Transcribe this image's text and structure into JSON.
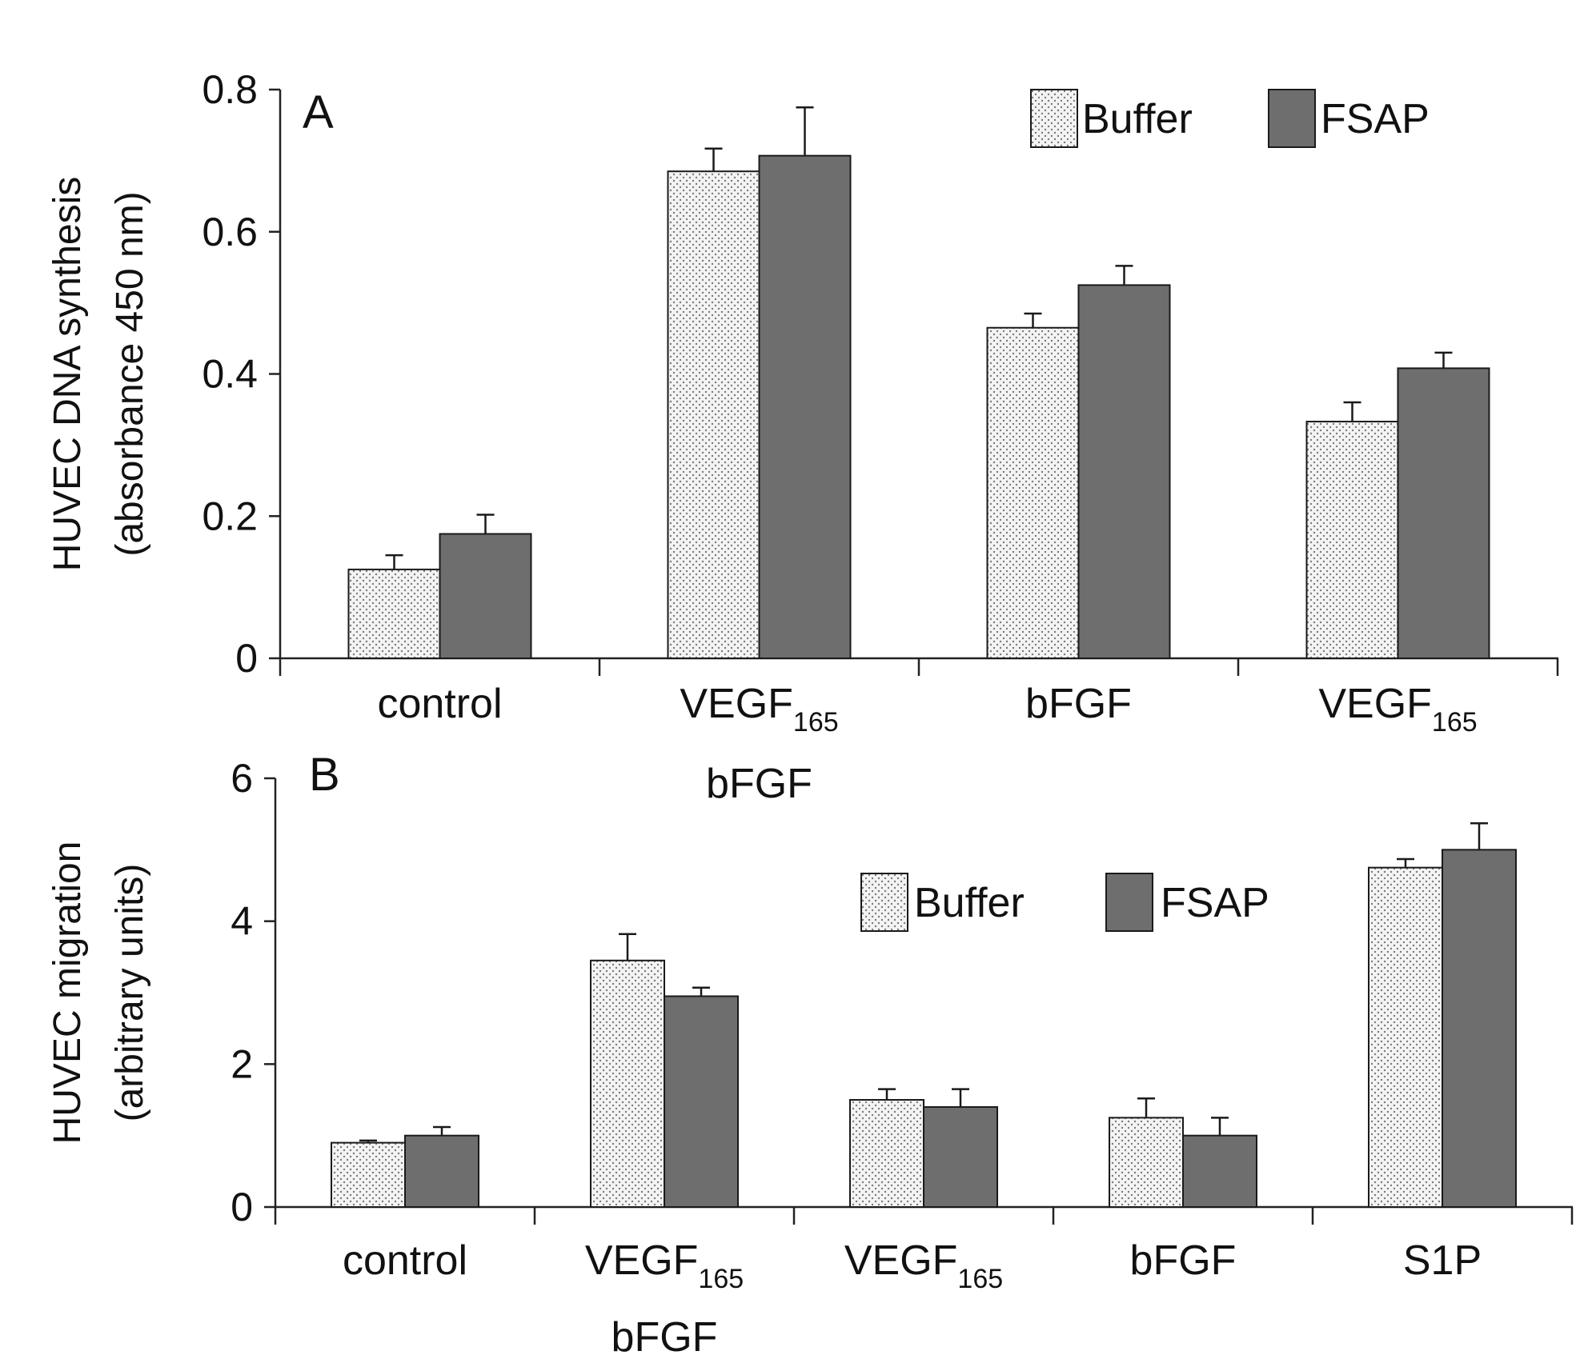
{
  "colors": {
    "buffer_fill": "#f4f4f4",
    "buffer_dots": "#7a7a7a",
    "fsap_fill": "#6e6e6e",
    "bar_edge": "#1a1a1a",
    "axis": "#222222",
    "text": "#111111"
  },
  "legend": [
    {
      "key": "buffer",
      "label": "Buffer"
    },
    {
      "key": "fsap",
      "label": "FSAP"
    }
  ],
  "chart_data": [
    {
      "type": "bar",
      "panel_label": "A",
      "ylabel": "HUVEC DNA synthesis",
      "ylabel2": "(absorbance 450 nm)",
      "ylim": [
        0,
        0.8
      ],
      "yticks": [
        0,
        0.2,
        0.4,
        0.6,
        0.8
      ],
      "ytick_labels": [
        "0",
        "0.2",
        "0.4",
        "0.6",
        "0.8"
      ],
      "legend_position": "top-right",
      "categories": [
        {
          "lines": [
            {
              "main": "control",
              "sub": ""
            }
          ]
        },
        {
          "lines": [
            {
              "main": "VEGF",
              "sub": "165"
            },
            {
              "main": "bFGF",
              "sub": ""
            }
          ]
        },
        {
          "lines": [
            {
              "main": "bFGF",
              "sub": ""
            }
          ]
        },
        {
          "lines": [
            {
              "main": "VEGF",
              "sub": "165"
            }
          ]
        }
      ],
      "series": [
        {
          "name": "Buffer",
          "key": "buffer",
          "values": [
            0.125,
            0.685,
            0.465,
            0.333
          ],
          "errors": [
            0.02,
            0.032,
            0.02,
            0.027
          ]
        },
        {
          "name": "FSAP",
          "key": "fsap",
          "values": [
            0.175,
            0.707,
            0.525,
            0.408
          ],
          "errors": [
            0.027,
            0.068,
            0.027,
            0.022
          ]
        }
      ]
    },
    {
      "type": "bar",
      "panel_label": "B",
      "ylabel": "HUVEC migration",
      "ylabel2": "(arbitrary units)",
      "ylim": [
        0,
        6
      ],
      "yticks": [
        0,
        2,
        4,
        6
      ],
      "ytick_labels": [
        "0",
        "2",
        "4",
        "6"
      ],
      "legend_position": "top-center",
      "categories": [
        {
          "lines": [
            {
              "main": "control",
              "sub": ""
            }
          ]
        },
        {
          "lines": [
            {
              "main": "VEGF",
              "sub": "165"
            },
            {
              "main": "bFGF",
              "sub": ""
            }
          ]
        },
        {
          "lines": [
            {
              "main": "VEGF",
              "sub": "165"
            }
          ]
        },
        {
          "lines": [
            {
              "main": "bFGF",
              "sub": ""
            }
          ]
        },
        {
          "lines": [
            {
              "main": "S1P",
              "sub": ""
            }
          ]
        }
      ],
      "series": [
        {
          "name": "Buffer",
          "key": "buffer",
          "values": [
            0.9,
            3.45,
            1.5,
            1.25,
            4.75
          ],
          "errors": [
            0.03,
            0.37,
            0.15,
            0.27,
            0.12
          ]
        },
        {
          "name": "FSAP",
          "key": "fsap",
          "values": [
            1.0,
            2.95,
            1.4,
            1.0,
            5.0
          ],
          "errors": [
            0.12,
            0.12,
            0.25,
            0.25,
            0.37
          ]
        }
      ]
    }
  ]
}
